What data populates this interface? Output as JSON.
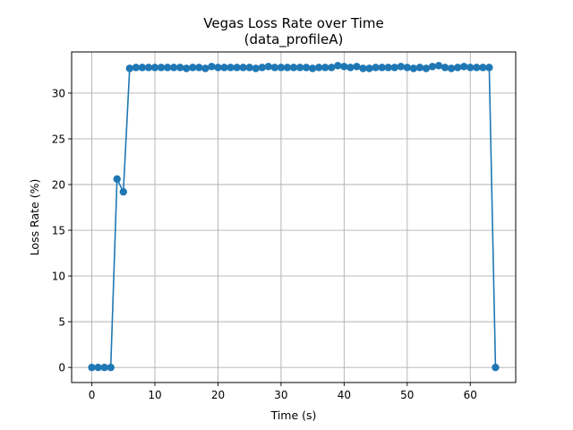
{
  "chart_data": {
    "type": "line",
    "title": "Vegas Loss Rate over Time",
    "subtitle": "(data_profileA)",
    "xlabel": "Time (s)",
    "ylabel": "Loss Rate (%)",
    "xlim": [
      -3.2,
      67.2
    ],
    "ylim": [
      -1.65,
      34.5
    ],
    "xticks": [
      0,
      10,
      20,
      30,
      40,
      50,
      60
    ],
    "yticks": [
      0,
      5,
      10,
      15,
      20,
      25,
      30
    ],
    "grid": true,
    "marker": "circle",
    "color": "#1f77b4",
    "series": [
      {
        "x": [
          0,
          1,
          2,
          3,
          4,
          5,
          6,
          7,
          8,
          9,
          10,
          11,
          12,
          13,
          14,
          15,
          16,
          17,
          18,
          19,
          20,
          21,
          22,
          23,
          24,
          25,
          26,
          27,
          28,
          29,
          30,
          31,
          32,
          33,
          34,
          35,
          36,
          37,
          38,
          39,
          40,
          41,
          42,
          43,
          44,
          45,
          46,
          47,
          48,
          49,
          50,
          51,
          52,
          53,
          54,
          55,
          56,
          57,
          58,
          59,
          60,
          61,
          62,
          63,
          64
        ],
        "values": [
          0,
          0,
          0,
          0,
          20.6,
          19.2,
          32.7,
          32.8,
          32.8,
          32.8,
          32.8,
          32.8,
          32.8,
          32.8,
          32.8,
          32.7,
          32.8,
          32.8,
          32.7,
          32.9,
          32.8,
          32.8,
          32.8,
          32.8,
          32.8,
          32.8,
          32.7,
          32.8,
          32.9,
          32.8,
          32.8,
          32.8,
          32.8,
          32.8,
          32.8,
          32.7,
          32.8,
          32.8,
          32.8,
          33.0,
          32.9,
          32.8,
          32.9,
          32.7,
          32.7,
          32.8,
          32.8,
          32.8,
          32.8,
          32.9,
          32.8,
          32.7,
          32.8,
          32.7,
          32.9,
          33.0,
          32.8,
          32.7,
          32.8,
          32.9,
          32.8,
          32.8,
          32.8,
          32.8,
          0
        ]
      }
    ]
  }
}
